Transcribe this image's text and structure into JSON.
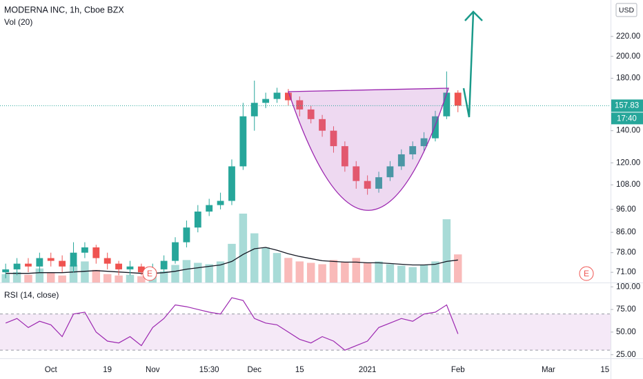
{
  "chart_data": {
    "type": "candlestick",
    "title": "MODERNA INC, 1h, Cboe BZX",
    "volume_label": "Vol (20)",
    "rsi_label": "RSI (14, close)",
    "currency": "USD",
    "countdown": "17:40",
    "earnings_markers": [
      "E",
      "E"
    ],
    "up_color": "#26a69a",
    "down_color": "#ef5350",
    "ylog": true,
    "ylim": [
      67.6,
      262
    ],
    "yticks": [
      {
        "value": 220,
        "label": "220.00"
      },
      {
        "value": 200,
        "label": "200.00"
      },
      {
        "value": 180,
        "label": "180.00"
      },
      {
        "value": 140,
        "label": "140.00"
      },
      {
        "value": 120,
        "label": "120.00"
      },
      {
        "value": 108,
        "label": "108.00"
      },
      {
        "value": 96,
        "label": "96.00"
      },
      {
        "value": 86,
        "label": "86.00"
      },
      {
        "value": 78,
        "label": "78.00"
      },
      {
        "value": 71,
        "label": "71.00"
      }
    ],
    "categories": [
      null,
      null,
      null,
      null,
      "Oct",
      null,
      null,
      null,
      null,
      "19",
      null,
      null,
      null,
      "Nov",
      null,
      null,
      null,
      null,
      "15:30",
      null,
      null,
      null,
      "Dec",
      null,
      null,
      null,
      "15",
      null,
      null,
      null,
      null,
      null,
      "2021",
      null,
      null,
      null,
      null,
      null,
      null,
      null,
      "Feb",
      null,
      null,
      null,
      null,
      null,
      null,
      null,
      "Mar",
      null,
      null,
      null,
      null,
      "15"
    ],
    "open": [
      71,
      72,
      74,
      73,
      76,
      75,
      73,
      78,
      80,
      76,
      74,
      72,
      73,
      71,
      72,
      75,
      82,
      88,
      95,
      98,
      100,
      118,
      150,
      160,
      163,
      168,
      162,
      155,
      148,
      140,
      130,
      118,
      110,
      106,
      112,
      118,
      125,
      130,
      135,
      150,
      168,
      null,
      null,
      null,
      null,
      null,
      null,
      null,
      null,
      null,
      null,
      null,
      null,
      null
    ],
    "high": [
      74,
      76,
      76,
      78,
      78,
      77,
      82,
      82,
      81,
      78,
      75,
      75,
      74,
      74,
      77,
      84,
      91,
      98,
      101,
      104,
      122,
      160,
      178,
      168,
      172,
      171,
      165,
      158,
      151,
      143,
      133,
      121,
      113,
      115,
      121,
      128,
      133,
      139,
      154,
      186,
      170,
      null,
      null,
      null,
      null,
      null,
      null,
      null,
      null,
      null,
      null,
      null,
      null,
      null
    ],
    "low": [
      69,
      70,
      71,
      71,
      73,
      71,
      71,
      76,
      74,
      72,
      70,
      70,
      70,
      70,
      71,
      74,
      80,
      86,
      93,
      96,
      98,
      116,
      140,
      156,
      160,
      158,
      150,
      145,
      136,
      126,
      115,
      106,
      103,
      104,
      110,
      116,
      122,
      127,
      133,
      148,
      153,
      null,
      null,
      null,
      null,
      null,
      null,
      null,
      null,
      null,
      null,
      null,
      null,
      null
    ],
    "close": [
      72,
      74,
      73,
      76,
      75,
      73,
      78,
      80,
      76,
      74,
      72,
      73,
      71,
      72,
      75,
      82,
      88,
      95,
      98,
      100,
      118,
      150,
      160,
      163,
      168,
      162,
      155,
      148,
      140,
      130,
      118,
      110,
      106,
      112,
      118,
      125,
      130,
      135,
      150,
      168,
      157.83,
      null,
      null,
      null,
      null,
      null,
      null,
      null,
      null,
      null,
      null,
      null,
      null,
      null
    ],
    "volume": [
      1.2,
      1.5,
      1.1,
      2.0,
      1.4,
      1.0,
      2.5,
      3.0,
      1.8,
      1.2,
      1.0,
      1.1,
      0.9,
      1.0,
      1.6,
      2.5,
      3.2,
      2.8,
      2.6,
      3.0,
      5.5,
      9.8,
      7.0,
      5.0,
      4.2,
      3.5,
      3.0,
      2.8,
      2.6,
      3.2,
      2.9,
      3.5,
      2.8,
      3.0,
      2.6,
      2.4,
      2.2,
      2.5,
      3.0,
      9.0,
      4.0,
      null,
      null,
      null,
      null,
      null,
      null,
      null,
      null,
      null,
      null,
      null,
      null,
      null
    ],
    "volume_ma": [
      1.3,
      1.3,
      1.3,
      1.4,
      1.4,
      1.4,
      1.5,
      1.6,
      1.7,
      1.6,
      1.5,
      1.4,
      1.3,
      1.3,
      1.4,
      1.6,
      1.9,
      2.1,
      2.3,
      2.5,
      3.0,
      4.0,
      4.8,
      5.0,
      4.6,
      4.1,
      3.7,
      3.4,
      3.1,
      3.0,
      2.9,
      2.9,
      2.8,
      2.8,
      2.7,
      2.6,
      2.5,
      2.5,
      2.6,
      3.0,
      3.2,
      null,
      null,
      null,
      null,
      null,
      null,
      null,
      null,
      null,
      null,
      null,
      null,
      null
    ],
    "rsi": [
      60,
      65,
      55,
      62,
      58,
      45,
      70,
      72,
      50,
      40,
      38,
      45,
      35,
      55,
      65,
      80,
      78,
      75,
      72,
      70,
      88,
      85,
      65,
      60,
      58,
      50,
      42,
      38,
      45,
      40,
      30,
      35,
      40,
      55,
      60,
      65,
      62,
      70,
      72,
      80,
      48,
      null,
      null,
      null,
      null,
      null,
      null,
      null,
      null,
      null,
      null,
      null,
      null,
      null
    ],
    "rsi_ylim": [
      21,
      104
    ],
    "rsi_yticks": [
      {
        "value": 100,
        "label": "100.00"
      },
      {
        "value": 75,
        "label": "75.00"
      },
      {
        "value": 50,
        "label": "50.00"
      },
      {
        "value": 25,
        "label": "25.00"
      }
    ],
    "rsi_bands": [
      30,
      70
    ],
    "rsi_color": "#9c27b0"
  }
}
